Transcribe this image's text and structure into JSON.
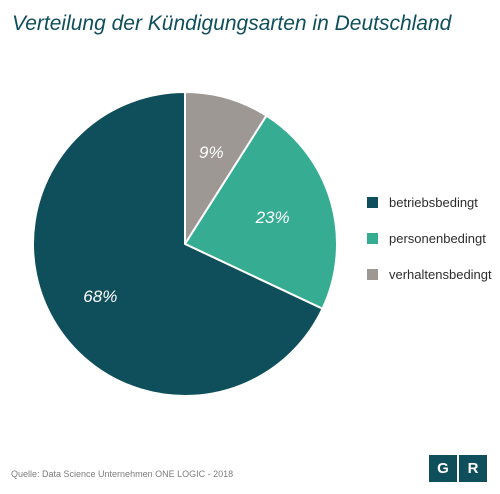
{
  "chart_data": {
    "type": "pie",
    "title": "Verteilung der Kündigungsarten in Deutschland",
    "slices": [
      {
        "name": "verhaltensbedingt",
        "value": 9,
        "label": "9%",
        "color": "#9d9893"
      },
      {
        "name": "personenbedingt",
        "value": 23,
        "label": "23%",
        "color": "#36ad93"
      },
      {
        "name": "betriebsbedingt",
        "value": 68,
        "label": "68%",
        "color": "#0f4f5c"
      }
    ],
    "start": "12 o'clock, clockwise",
    "legend_position": "right",
    "legend": [
      {
        "label": "betriebsbedingt",
        "color": "#0f4f5c"
      },
      {
        "label": "personenbedingt",
        "color": "#36ad93"
      },
      {
        "label": "verhaltensbedingt",
        "color": "#9d9893"
      }
    ]
  },
  "source": "Quelle: Data Science Unternehmen ONE LOGIC - 2018",
  "logo": {
    "letters": [
      "G",
      "R"
    ],
    "color": "#0f4f5c"
  }
}
